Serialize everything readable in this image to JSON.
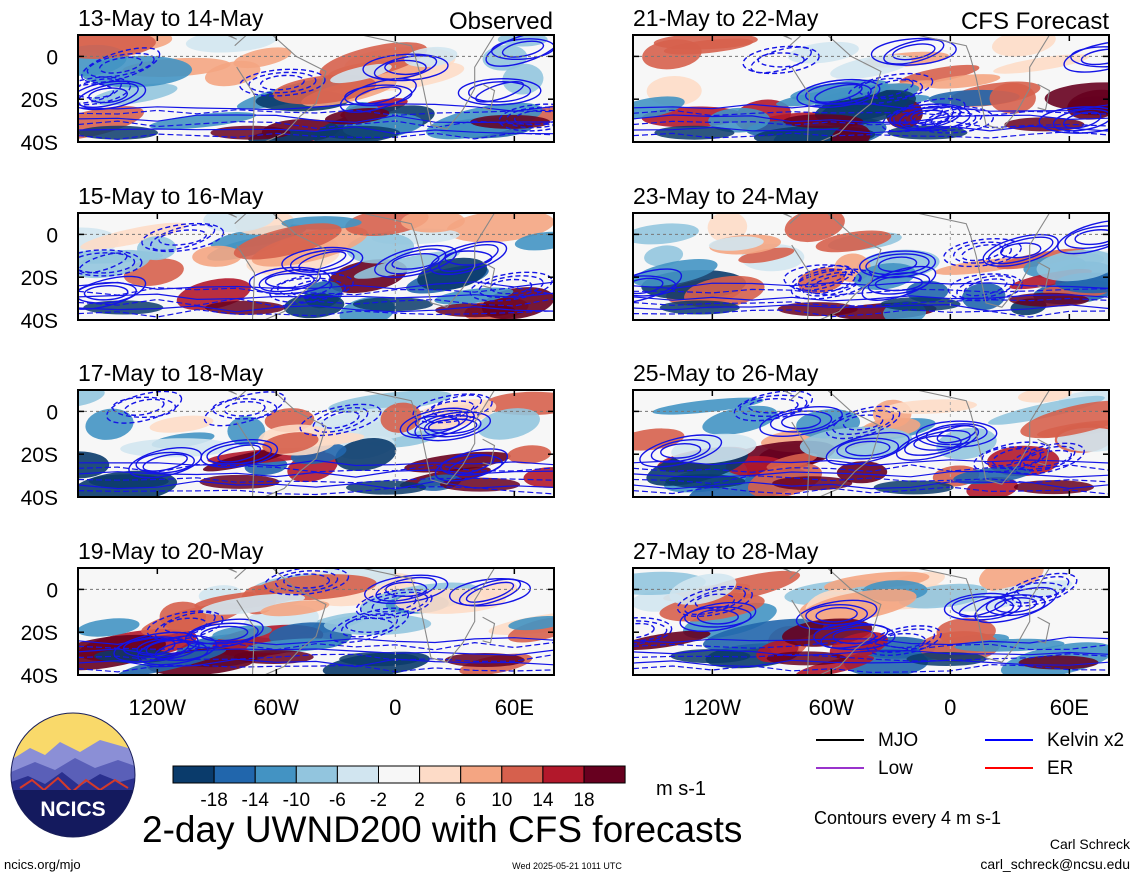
{
  "figure": {
    "title": "2-day UWND200 with CFS forecasts",
    "observed_label": "Observed",
    "forecast_label": "CFS Forecast",
    "colorbar_units": "m s-1",
    "contour_note": "Contours every 4 m s-1",
    "footer_left": "ncics.org/mjo",
    "footer_center": "Wed 2025-05-21 1011 UTC",
    "author": "Carl Schreck",
    "email": "carl_schreck@ncsu.edu",
    "logo_text": "NCICS"
  },
  "legend": [
    {
      "label": "MJO",
      "color": "#000000"
    },
    {
      "label": "Kelvin x2",
      "color": "#0000ff"
    },
    {
      "label": "Low",
      "color": "#9933cc"
    },
    {
      "label": "ER",
      "color": "#ff0000"
    }
  ],
  "chart_data": {
    "type": "heatmap",
    "variable": "UWND200 anomaly",
    "units": "m s-1",
    "ytick_labels": [
      "0",
      "20S",
      "40S"
    ],
    "xtick_labels": [
      "120W",
      "60W",
      "0",
      "60E"
    ],
    "panels": [
      {
        "title": "13-May to 14-May",
        "kind": "observed"
      },
      {
        "title": "15-May to 16-May",
        "kind": "observed"
      },
      {
        "title": "17-May to 18-May",
        "kind": "observed"
      },
      {
        "title": "19-May to 20-May",
        "kind": "observed"
      },
      {
        "title": "21-May to 22-May",
        "kind": "forecast"
      },
      {
        "title": "23-May to 24-May",
        "kind": "forecast"
      },
      {
        "title": "25-May to 26-May",
        "kind": "forecast"
      },
      {
        "title": "27-May to 28-May",
        "kind": "forecast"
      }
    ],
    "colorbar": {
      "levels": [
        -18,
        -14,
        -10,
        -6,
        -2,
        2,
        6,
        10,
        14,
        18
      ],
      "colors": [
        "#0a3b6b",
        "#2166ac",
        "#4393c3",
        "#92c5de",
        "#d1e5f0",
        "#f7f7f7",
        "#fddbc7",
        "#f4a582",
        "#d6604d",
        "#b2182b",
        "#67001f"
      ]
    }
  }
}
